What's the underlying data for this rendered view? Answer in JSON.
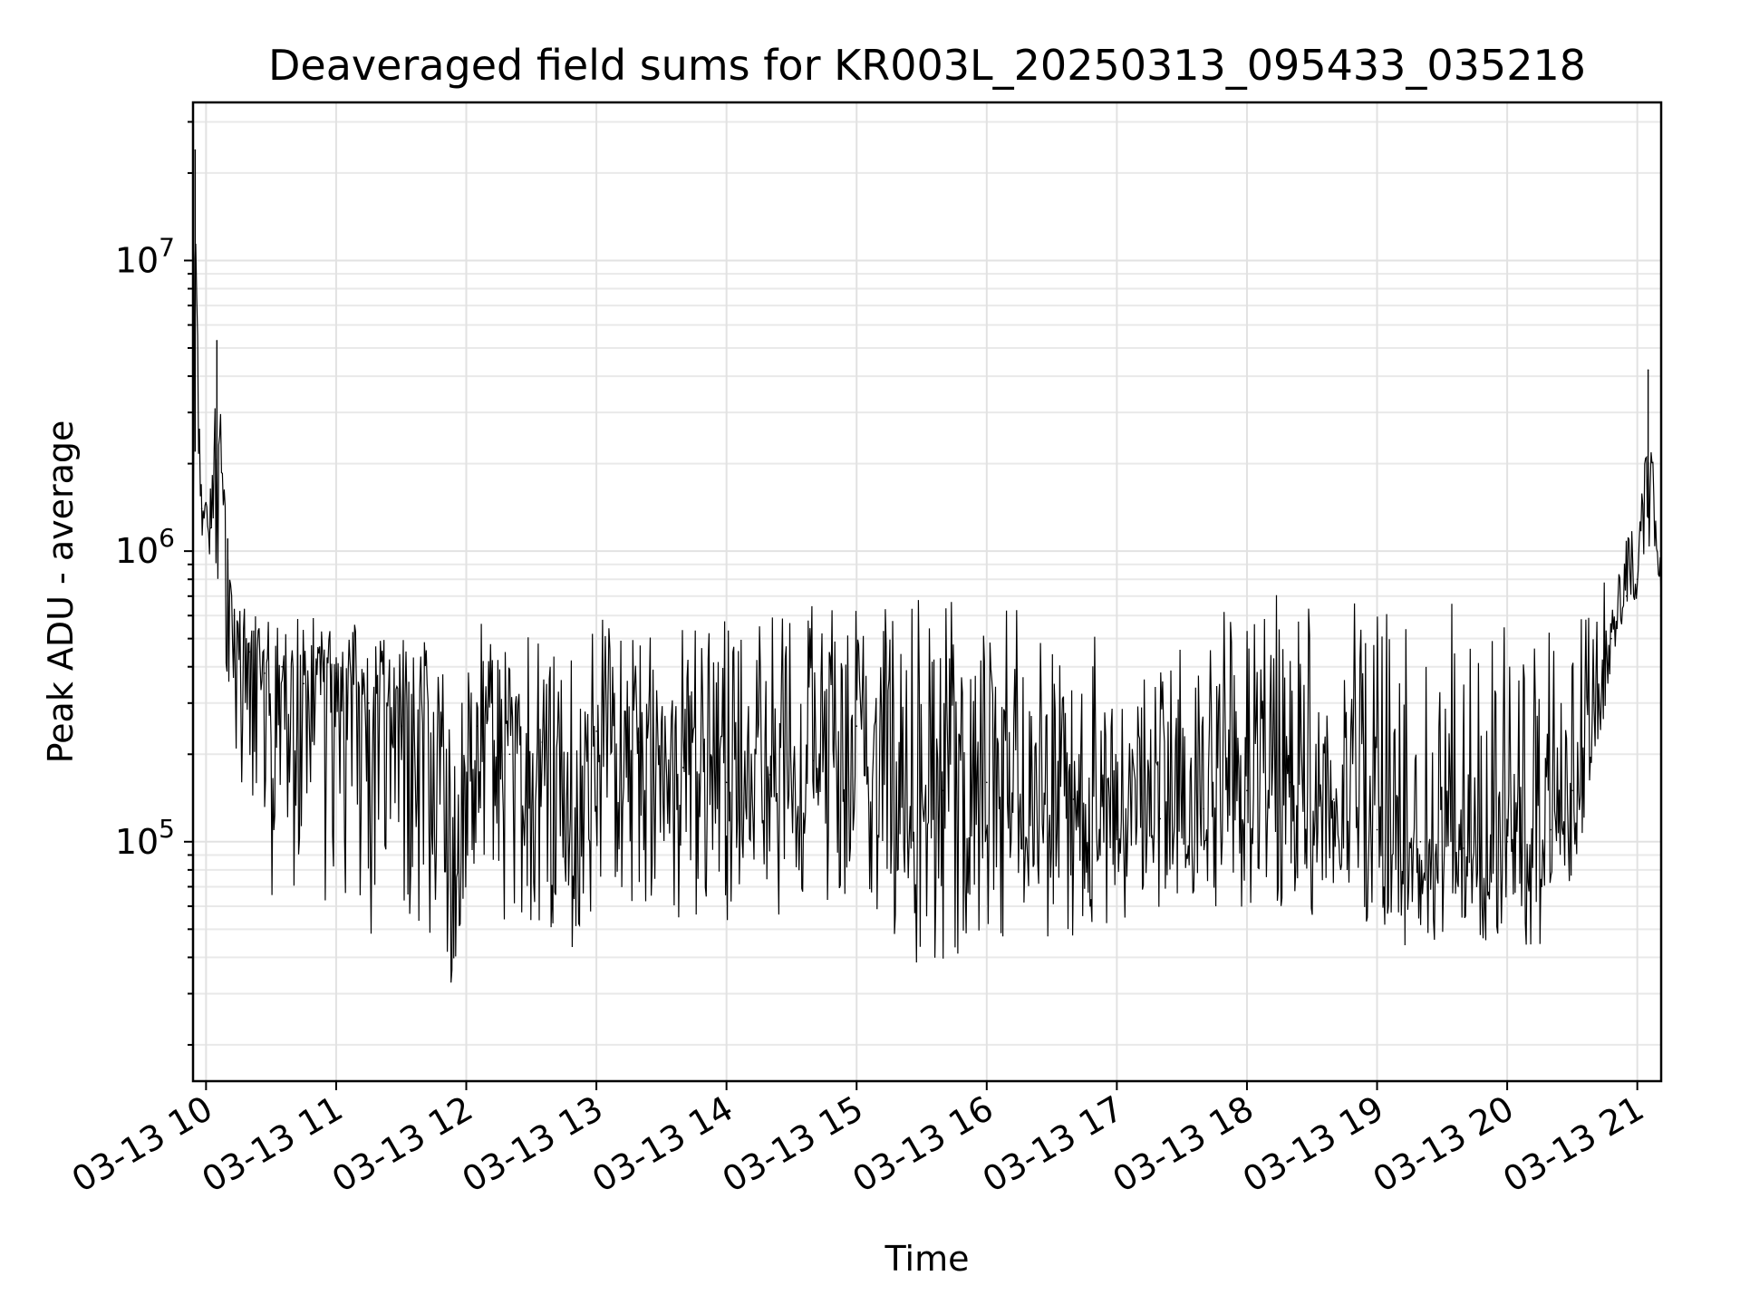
{
  "chart_data": {
    "type": "line",
    "title": "Deaveraged field sums for KR003L_20250313_095433_035218",
    "xlabel": "Time",
    "ylabel": "Peak ADU - average",
    "yscale": "log",
    "ylim": [
      15000,
      35000000
    ],
    "xlim": [
      "2025-03-13 09:54",
      "2025-03-13 21:11"
    ],
    "grid": "on",
    "y_ticks": [
      {
        "base": "10",
        "exp": "5",
        "value": 100000
      },
      {
        "base": "10",
        "exp": "6",
        "value": 1000000
      },
      {
        "base": "10",
        "exp": "7",
        "value": 10000000
      }
    ],
    "x_ticks": [
      {
        "label": "03-13 10",
        "time": "2025-03-13 10:00"
      },
      {
        "label": "03-13 11",
        "time": "2025-03-13 11:00"
      },
      {
        "label": "03-13 12",
        "time": "2025-03-13 12:00"
      },
      {
        "label": "03-13 13",
        "time": "2025-03-13 13:00"
      },
      {
        "label": "03-13 14",
        "time": "2025-03-13 14:00"
      },
      {
        "label": "03-13 15",
        "time": "2025-03-13 15:00"
      },
      {
        "label": "03-13 16",
        "time": "2025-03-13 16:00"
      },
      {
        "label": "03-13 17",
        "time": "2025-03-13 17:00"
      },
      {
        "label": "03-13 18",
        "time": "2025-03-13 18:00"
      },
      {
        "label": "03-13 19",
        "time": "2025-03-13 19:00"
      },
      {
        "label": "03-13 20",
        "time": "2025-03-13 20:00"
      },
      {
        "label": "03-13 21",
        "time": "2025-03-13 21:00"
      }
    ],
    "series": [
      {
        "color": "#000000",
        "time": [
          "2025-03-13 09:54",
          "2025-03-13 09:55",
          "2025-03-13 09:58",
          "2025-03-13 10:02",
          "2025-03-13 10:05",
          "2025-03-13 10:10",
          "2025-03-13 10:13",
          "2025-03-13 10:20",
          "2025-03-13 10:27",
          "2025-03-13 10:35",
          "2025-03-13 10:45",
          "2025-03-13 11:00",
          "2025-03-13 11:15",
          "2025-03-13 11:30",
          "2025-03-13 11:45",
          "2025-03-13 11:55",
          "2025-03-13 12:05",
          "2025-03-13 12:20",
          "2025-03-13 12:35",
          "2025-03-13 12:50",
          "2025-03-13 13:00",
          "2025-03-13 13:20",
          "2025-03-13 13:40",
          "2025-03-13 14:00",
          "2025-03-13 14:20",
          "2025-03-13 14:40",
          "2025-03-13 15:00",
          "2025-03-13 15:20",
          "2025-03-13 15:40",
          "2025-03-13 16:00",
          "2025-03-13 16:20",
          "2025-03-13 16:40",
          "2025-03-13 17:00",
          "2025-03-13 17:20",
          "2025-03-13 17:40",
          "2025-03-13 18:00",
          "2025-03-13 18:20",
          "2025-03-13 18:40",
          "2025-03-13 19:00",
          "2025-03-13 19:20",
          "2025-03-13 19:40",
          "2025-03-13 20:00",
          "2025-03-13 20:20",
          "2025-03-13 20:30",
          "2025-03-13 20:40",
          "2025-03-13 20:48",
          "2025-03-13 20:55",
          "2025-03-13 21:00",
          "2025-03-13 21:05",
          "2025-03-13 21:11"
        ],
        "values": [
          1200000,
          24000000,
          1400000,
          1200000,
          5300000,
          1100000,
          600000,
          450000,
          380000,
          400000,
          350000,
          380000,
          300000,
          250000,
          200000,
          80000,
          250000,
          200000,
          220000,
          90000,
          240000,
          220000,
          180000,
          160000,
          170000,
          190000,
          250000,
          180000,
          150000,
          160000,
          150000,
          140000,
          110000,
          120000,
          130000,
          150000,
          160000,
          140000,
          110000,
          100000,
          95000,
          100000,
          110000,
          150000,
          300000,
          500000,
          700000,
          800000,
          4200000,
          750000
        ],
        "band_low": [
          900000,
          900000,
          900000,
          800000,
          500000,
          300000,
          200000,
          100000,
          60000,
          50000,
          45000,
          45000,
          35000,
          30000,
          25000,
          30000,
          60000,
          45000,
          40000,
          28000,
          55000,
          60000,
          50000,
          48000,
          50000,
          60000,
          50000,
          35000,
          30000,
          40000,
          45000,
          42000,
          45000,
          55000,
          55000,
          55000,
          50000,
          50000,
          45000,
          42000,
          40000,
          42000,
          45000,
          55000,
          150000,
          350000,
          600000,
          600000,
          600000,
          600000
        ],
        "band_high": [
          2000000,
          2200000,
          2000000,
          1800000,
          1500000,
          700000,
          650000,
          650000,
          650000,
          620000,
          600000,
          600000,
          560000,
          550000,
          520000,
          480000,
          550000,
          650000,
          600000,
          500000,
          600000,
          650000,
          700000,
          650000,
          600000,
          700000,
          700000,
          700000,
          750000,
          700000,
          600000,
          550000,
          600000,
          600000,
          650000,
          750000,
          800000,
          750000,
          750000,
          700000,
          700000,
          700000,
          700000,
          650000,
          800000,
          900000,
          1200000,
          1300000,
          1300000,
          1300000
        ]
      }
    ]
  }
}
